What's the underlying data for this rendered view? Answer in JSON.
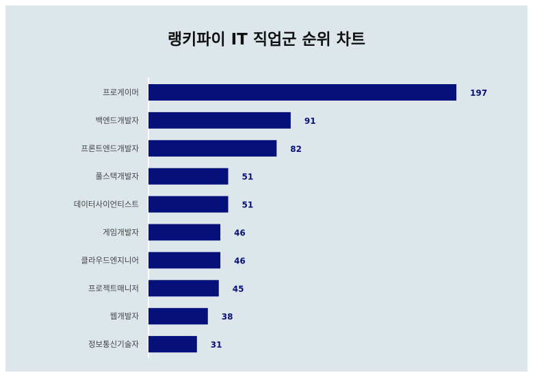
{
  "chart_data": {
    "type": "bar",
    "orientation": "horizontal",
    "title": "랭키파이 IT 직업군 순위 차트",
    "categories": [
      "프로게이머",
      "백엔드개발자",
      "프론트엔드개발자",
      "풀스택개발자",
      "데이터사이언티스트",
      "게임개발자",
      "클라우드엔지니어",
      "프로젝트매니저",
      "웹개발자",
      "정보통신기술자"
    ],
    "values": [
      197,
      91,
      82,
      51,
      51,
      46,
      46,
      45,
      38,
      31
    ],
    "xlim": [
      0,
      197
    ],
    "bar_color": "#06107a",
    "label_color": "#06107a",
    "background": "#dce6eb",
    "grid": false
  }
}
